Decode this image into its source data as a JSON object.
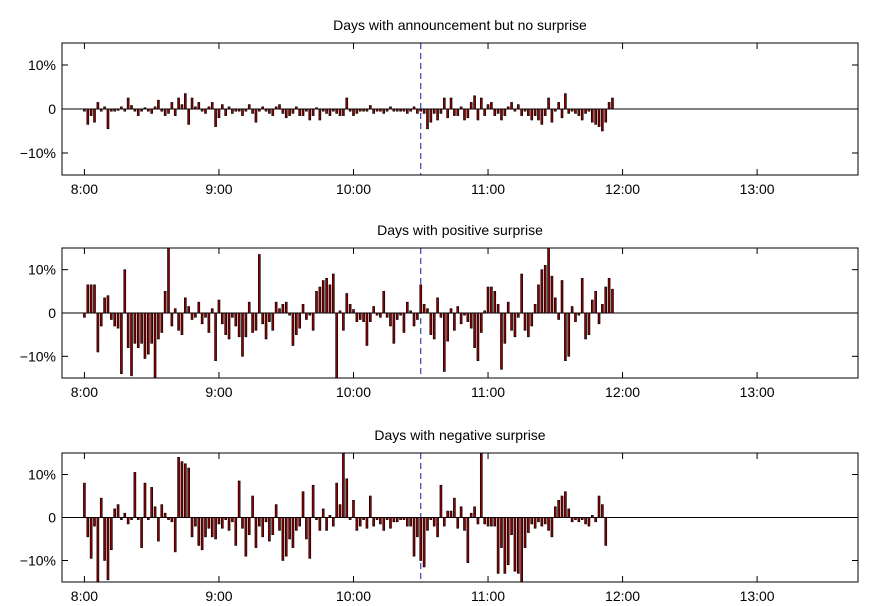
{
  "chart_data": [
    {
      "type": "bar",
      "title": "Days with announcement but no surprise",
      "xlabel": "",
      "ylabel": "",
      "xlim": [
        470,
        825
      ],
      "ylim": [
        -15,
        15
      ],
      "x_ticks": [
        480,
        540,
        600,
        660,
        720,
        780
      ],
      "x_tick_labels": [
        "8:00",
        "9:00",
        "10:00",
        "11:00",
        "12:00",
        "13:00"
      ],
      "y_ticks": [
        10,
        0,
        -10
      ],
      "y_tick_labels": [
        "10%",
        "0",
        "−10%"
      ],
      "announcement_time": 630,
      "bar_color": "#8b0000",
      "x_start": 480,
      "x_step": 1.5,
      "values": [
        -0.5,
        -3.5,
        -1.5,
        -3,
        1.5,
        -0.5,
        0.5,
        -4.5,
        -0.5,
        -0.5,
        -0.3,
        0.5,
        -0.5,
        2.5,
        0.8,
        -0.5,
        -1.5,
        -0.5,
        0.3,
        -0.5,
        -1,
        0.5,
        2,
        -0.5,
        -1.5,
        -1,
        1.5,
        -1.5,
        2.5,
        1,
        3.5,
        -3.5,
        2.5,
        0.5,
        1.5,
        -0.5,
        -1,
        0.5,
        1.5,
        -4,
        -2,
        1,
        -1.5,
        0.5,
        -1,
        -0.5,
        -0.5,
        -1.5,
        -0.5,
        1,
        -1,
        -3,
        -0.5,
        0.5,
        -0.5,
        -1,
        -1.5,
        0.5,
        1,
        -1,
        -2,
        -1.5,
        -1,
        0.5,
        -1.5,
        -1.5,
        -0.5,
        -2.5,
        -1.5,
        0.3,
        -2.5,
        -0.5,
        -1,
        -1.5,
        -0.5,
        -1,
        -1.5,
        -1.5,
        2.5,
        -0.5,
        -1.5,
        -1,
        -0.5,
        -0.5,
        -0.5,
        0.8,
        -1,
        -0.5,
        -0.5,
        -1,
        -0.5,
        0.5,
        -0.5,
        -0.5,
        -0.5,
        -0.5,
        -1,
        -0.5,
        0.5,
        -1,
        -0.5,
        -1,
        -4.5,
        -3,
        -1,
        -2.5,
        -1,
        2.5,
        -2,
        2.5,
        -1.5,
        -1.5,
        0.5,
        -2.5,
        -2,
        1.5,
        3,
        -2.5,
        2.5,
        -1.5,
        1,
        1.5,
        -1.5,
        -1,
        -2.5,
        -1.5,
        0.5,
        1.5,
        -0.5,
        1,
        -1.5,
        -0.5,
        -1.5,
        -2.5,
        -1.5,
        -2.5,
        -3.5,
        -1.5,
        2.5,
        -3,
        -0.5,
        1.5,
        -2,
        3.5,
        -1,
        -0.5,
        -1,
        -1.5,
        -2.5,
        -1,
        -0.5,
        -3,
        -3.5,
        -4,
        -5,
        -3,
        1.5,
        2.5
      ]
    },
    {
      "type": "bar",
      "title": "Days with positive surprise",
      "xlabel": "",
      "ylabel": "",
      "xlim": [
        470,
        825
      ],
      "ylim": [
        -15,
        15
      ],
      "x_ticks": [
        480,
        540,
        600,
        660,
        720,
        780
      ],
      "x_tick_labels": [
        "8:00",
        "9:00",
        "10:00",
        "11:00",
        "12:00",
        "13:00"
      ],
      "y_ticks": [
        10,
        0,
        -10
      ],
      "y_tick_labels": [
        "10%",
        "0",
        "−10%"
      ],
      "announcement_time": 630,
      "bar_color": "#8b0000",
      "x_start": 480,
      "x_step": 1.5,
      "values": [
        -1,
        6.5,
        6.5,
        6.5,
        -9,
        -3,
        3.5,
        4,
        -1.5,
        -3,
        -3.5,
        -14,
        10,
        -8,
        -14.5,
        -7,
        -8,
        -7,
        -10.5,
        -9.5,
        -7,
        -15,
        -6,
        -4.5,
        5,
        15,
        -3,
        1,
        -4,
        -5,
        3.5,
        1.5,
        -1.5,
        -1,
        2.5,
        -2.5,
        -1,
        -4.5,
        1,
        -11,
        3,
        -2.5,
        -5,
        -6,
        -1,
        -3,
        -5.5,
        -10,
        -5.5,
        2.5,
        -4.5,
        -4,
        13.5,
        -2.5,
        -6,
        -2,
        -4,
        2.5,
        1,
        2,
        2.5,
        -0.5,
        -7.5,
        -5,
        -3.5,
        2,
        -1.5,
        -0.5,
        -4,
        5,
        6,
        7.5,
        8,
        6.5,
        9,
        -15,
        0.5,
        -4,
        4.5,
        2,
        0.8,
        -2,
        -1.5,
        -2,
        -7.5,
        -2,
        1.5,
        -0.5,
        -1,
        5,
        -1,
        -3,
        -7,
        -1.5,
        -0.5,
        -4.5,
        2.5,
        0.5,
        -3,
        -1.5,
        6.5,
        2,
        1,
        -5,
        -6,
        3.5,
        -1,
        -13.5,
        -6.5,
        1,
        -4,
        1.5,
        -2.5,
        -0.5,
        -2,
        -3.5,
        -8,
        -11,
        -4.5,
        0.5,
        6,
        6,
        5,
        2,
        -13,
        -7,
        2.5,
        -4,
        -5.5,
        -1,
        9,
        -4,
        -5.5,
        -3,
        2,
        6.5,
        10,
        11,
        15,
        8.5,
        3.5,
        -1.5,
        7.5,
        -11,
        -10,
        1.5,
        -2,
        -0.5,
        8,
        -6,
        -5,
        3,
        5,
        -2.5,
        2,
        6,
        8,
        5.5
      ]
    },
    {
      "type": "bar",
      "title": "Days with negative surprise",
      "xlabel": "",
      "ylabel": "",
      "xlim": [
        470,
        825
      ],
      "ylim": [
        -15,
        15
      ],
      "x_ticks": [
        480,
        540,
        600,
        660,
        720,
        780
      ],
      "x_tick_labels": [
        "8:00",
        "9:00",
        "10:00",
        "11:00",
        "12:00",
        "13:00"
      ],
      "y_ticks": [
        10,
        0,
        -10
      ],
      "y_tick_labels": [
        "10%",
        "0",
        "−10%"
      ],
      "announcement_time": 630,
      "bar_color": "#8b0000",
      "x_start": 480,
      "x_step": 1.5,
      "values": [
        8,
        -4.5,
        -9.5,
        -2,
        -15,
        4.5,
        -10,
        -14.5,
        -7.5,
        2,
        3,
        -0.5,
        1,
        -1.5,
        -0.5,
        10.5,
        -0.5,
        -7,
        8,
        -0.5,
        7,
        2.5,
        -5.5,
        3,
        1,
        -0.5,
        -1,
        -8,
        14,
        13,
        12.5,
        11.5,
        -4.5,
        -2,
        -6.5,
        -7.5,
        -4.5,
        -2.5,
        -4.5,
        -5,
        -1.5,
        -2.5,
        -0.5,
        -3,
        -1,
        -6.5,
        8.5,
        -2.5,
        -9,
        -4,
        5,
        -7,
        -2,
        -4.5,
        -1,
        -5.5,
        -4,
        3,
        -3,
        -10,
        -9,
        -5,
        -7,
        -3,
        -2,
        6,
        -5,
        -9.5,
        7.5,
        -0.5,
        -3,
        2,
        -3,
        0.5,
        -2,
        8,
        3,
        15.5,
        9,
        -0.5,
        4,
        -3,
        -2,
        -0.5,
        -2.5,
        5,
        -2,
        -0.5,
        -1.5,
        -3,
        -0.5,
        -2.5,
        -1,
        -1,
        -0.5,
        -0.5,
        -2,
        -2,
        -9,
        -4.5,
        -10,
        -11.5,
        -3,
        -0.5,
        -2,
        -4.5,
        7.5,
        -2,
        1.5,
        1.5,
        4.5,
        -2.5,
        2.5,
        -3,
        -10.5,
        1,
        2.5,
        -1.5,
        15,
        -1.5,
        -2,
        -2,
        -2,
        -13,
        -7,
        -13,
        -11,
        -4,
        -12.5,
        -13,
        -15,
        -7,
        -3.5,
        -1.5,
        -2.5,
        -1,
        -2,
        -1.5,
        -3,
        -4.5,
        2.5,
        4,
        5,
        6,
        2,
        -1,
        -0.5,
        -1,
        -0.5,
        -1.5,
        -2,
        0.5,
        -1,
        5,
        3,
        -6.5
      ]
    }
  ]
}
